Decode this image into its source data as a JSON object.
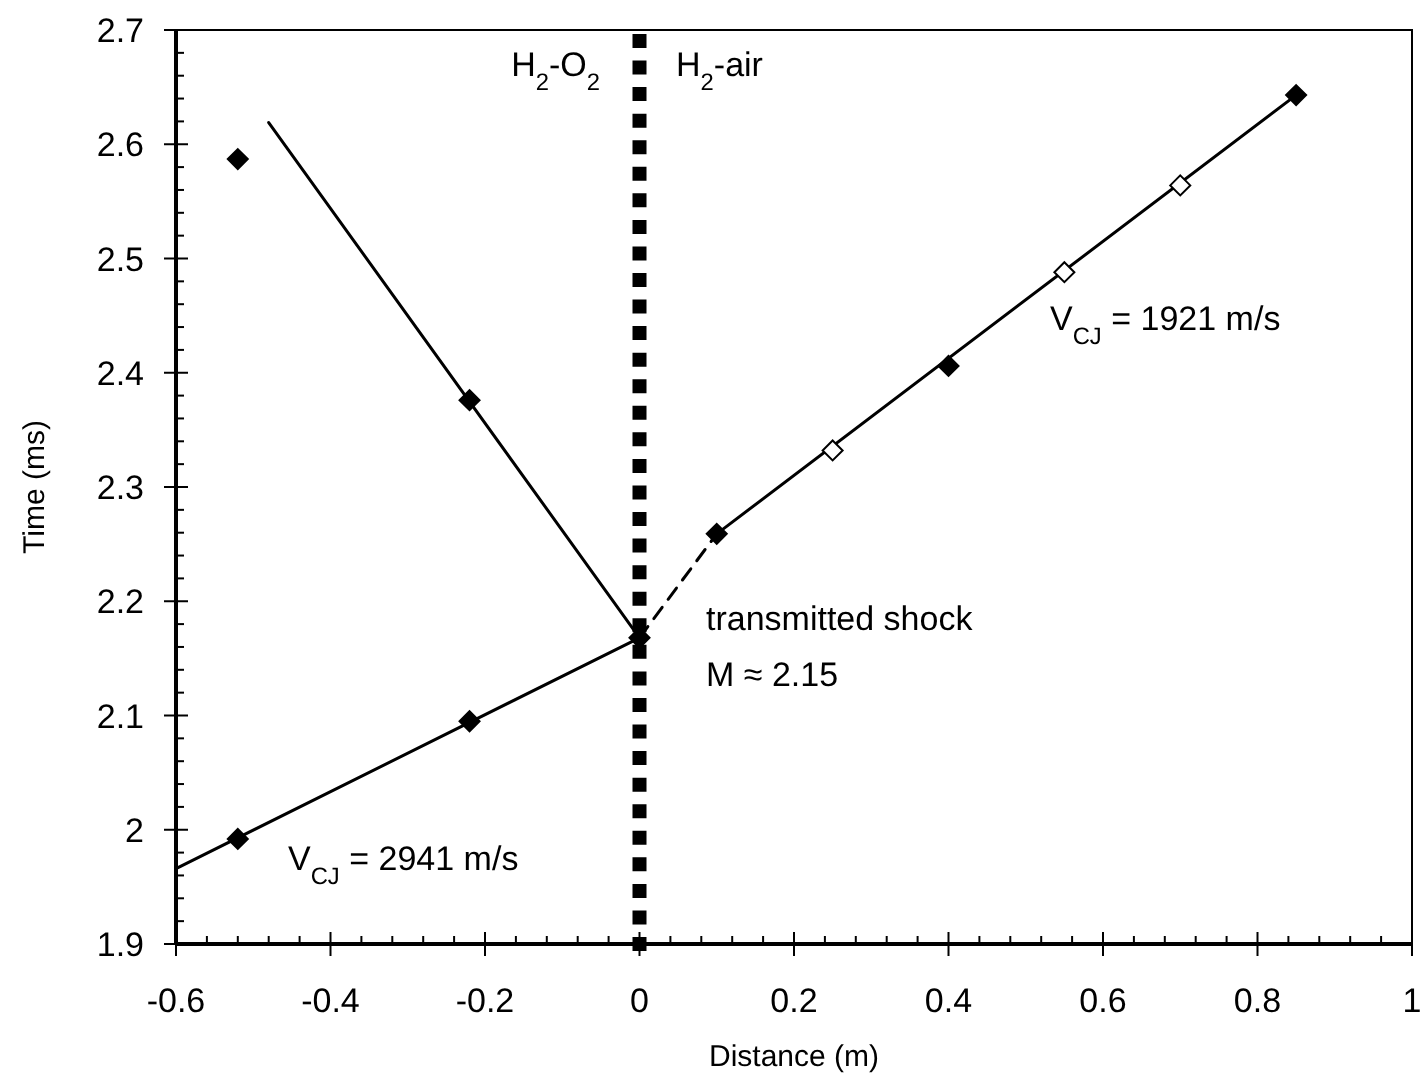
{
  "chart_data": {
    "type": "scatter",
    "xlabel": "Distance (m)",
    "ylabel": "Time (ms)",
    "xlim": [
      -0.6,
      1
    ],
    "ylim": [
      1.9,
      2.7
    ],
    "xticks": [
      -0.6,
      -0.4,
      -0.2,
      0,
      0.2,
      0.4,
      0.6,
      0.8,
      1,
      {
        "value": -0.56,
        "label": null
      },
      {
        "value": -0.52,
        "label": null
      },
      {
        "value": -0.48,
        "label": null
      },
      {
        "value": -0.44,
        "label": null
      },
      {
        "value": -0.36,
        "label": null
      },
      {
        "value": -0.32,
        "label": null
      },
      {
        "value": -0.28,
        "label": null
      },
      {
        "value": -0.24,
        "label": null
      },
      {
        "value": -0.16,
        "label": null
      },
      {
        "value": -0.12,
        "label": null
      },
      {
        "value": -0.08,
        "label": null
      },
      {
        "value": -0.04,
        "label": null
      },
      {
        "value": 0.04,
        "label": null
      },
      {
        "value": 0.08,
        "label": null
      },
      {
        "value": 0.12,
        "label": null
      },
      {
        "value": 0.16,
        "label": null
      },
      {
        "value": 0.24,
        "label": null
      },
      {
        "value": 0.28,
        "label": null
      },
      {
        "value": 0.32,
        "label": null
      },
      {
        "value": 0.36,
        "label": null
      },
      {
        "value": 0.44,
        "label": null
      },
      {
        "value": 0.48,
        "label": null
      },
      {
        "value": 0.52,
        "label": null
      },
      {
        "value": 0.56,
        "label": null
      },
      {
        "value": 0.64,
        "label": null
      },
      {
        "value": 0.68,
        "label": null
      },
      {
        "value": 0.72,
        "label": null
      },
      {
        "value": 0.76,
        "label": null
      },
      {
        "value": 0.84,
        "label": null
      },
      {
        "value": 0.88,
        "label": null
      },
      {
        "value": 0.92,
        "label": null
      },
      {
        "value": 0.96,
        "label": null
      }
    ],
    "yticks": [
      1.9,
      2,
      2.1,
      2.2,
      2.3,
      2.4,
      2.5,
      2.6,
      2.7,
      {
        "value": 1.92,
        "label": null
      },
      {
        "value": 1.94,
        "label": null
      },
      {
        "value": 1.96,
        "label": null
      },
      {
        "value": 1.98,
        "label": null
      },
      {
        "value": 2.02,
        "label": null
      },
      {
        "value": 2.04,
        "label": null
      },
      {
        "value": 2.06,
        "label": null
      },
      {
        "value": 2.08,
        "label": null
      },
      {
        "value": 2.12,
        "label": null
      },
      {
        "value": 2.14,
        "label": null
      },
      {
        "value": 2.16,
        "label": null
      },
      {
        "value": 2.18,
        "label": null
      },
      {
        "value": 2.22,
        "label": null
      },
      {
        "value": 2.24,
        "label": null
      },
      {
        "value": 2.26,
        "label": null
      },
      {
        "value": 2.28,
        "label": null
      },
      {
        "value": 2.32,
        "label": null
      },
      {
        "value": 2.34,
        "label": null
      },
      {
        "value": 2.36,
        "label": null
      },
      {
        "value": 2.38,
        "label": null
      },
      {
        "value": 2.42,
        "label": null
      },
      {
        "value": 2.44,
        "label": null
      },
      {
        "value": 2.46,
        "label": null
      },
      {
        "value": 2.48,
        "label": null
      },
      {
        "value": 2.52,
        "label": null
      },
      {
        "value": 2.54,
        "label": null
      },
      {
        "value": 2.56,
        "label": null
      },
      {
        "value": 2.58,
        "label": null
      },
      {
        "value": 2.62,
        "label": null
      },
      {
        "value": 2.64,
        "label": null
      },
      {
        "value": 2.66,
        "label": null
      },
      {
        "value": 2.68,
        "label": null
      }
    ],
    "grid": false,
    "series": [
      {
        "type": "line",
        "color": "#000000",
        "marker": "none",
        "line_style": "solid",
        "x": [
          -0.48,
          0
        ],
        "values": [
          2.619,
          2.168
        ]
      },
      {
        "type": "line",
        "color": "#000000",
        "marker": "none",
        "line_style": "solid",
        "x": [
          -0.6,
          0
        ],
        "values": [
          1.966,
          2.168
        ]
      },
      {
        "type": "line",
        "color": "#000000",
        "marker": "none",
        "line_style": "dashed",
        "x": [
          0,
          0.1
        ],
        "values": [
          2.168,
          2.259
        ]
      },
      {
        "type": "line",
        "color": "#000000",
        "marker": "none",
        "line_style": "solid",
        "x": [
          0.1,
          0.85
        ],
        "values": [
          2.259,
          2.643
        ]
      },
      {
        "color": "#000000",
        "marker": "diamond",
        "x": [
          -0.52,
          -0.22,
          0,
          -0.22,
          -0.52,
          0.1,
          0.4,
          0.85
        ],
        "values": [
          2.587,
          2.376,
          2.168,
          2.095,
          1.992,
          2.259,
          2.406,
          2.643
        ]
      },
      {
        "color": "#ffffff",
        "marker": "diamond",
        "x": [
          0.25,
          0.55,
          0.7
        ],
        "values": [
          2.332,
          2.488,
          2.564
        ]
      }
    ],
    "ref_lines": [
      {
        "axis": "x",
        "value": 0,
        "color": "#000000",
        "line_style": "dotted"
      }
    ],
    "annotations": [
      "H$_{2}$-O$_{2}$",
      "H$_{2}$-air",
      "V$_{CJ}$ = 2941 m/s",
      "V$_{CJ}$ = 1921 m/s",
      "transmitted shock",
      "M ≈ 2.15"
    ]
  }
}
